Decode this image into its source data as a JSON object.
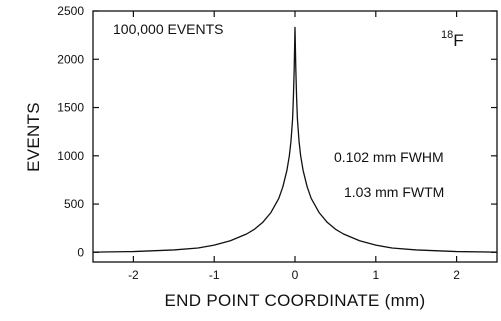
{
  "chart_data": {
    "type": "line",
    "xlabel": "END POINT COORDINATE (mm)",
    "ylabel": "EVENTS",
    "xlim": [
      -2.5,
      2.5
    ],
    "ylim": [
      -100,
      2500
    ],
    "x_ticks": [
      -2,
      -1,
      0,
      1,
      2
    ],
    "x_tick_labels": [
      "-2",
      "-1",
      "0",
      "1",
      "2"
    ],
    "y_ticks": [
      0,
      500,
      1000,
      1500,
      2000,
      2500
    ],
    "y_tick_labels": [
      "0",
      "500",
      "1000",
      "1500",
      "2000",
      "2500"
    ],
    "grid": false,
    "annotations": {
      "events": "100,000 EVENTS",
      "isotope_mass": "18",
      "isotope_symbol": "F",
      "fwhm": "0.102 mm FWHM",
      "fwtm": "1.03 mm FWTM"
    },
    "series": [
      {
        "x": [
          -2.5,
          -2.0,
          -1.5,
          -1.2,
          -1.0,
          -0.8,
          -0.6,
          -0.5,
          -0.4,
          -0.3,
          -0.2,
          -0.15,
          -0.1,
          -0.07,
          -0.05,
          -0.03,
          -0.02,
          -0.01,
          0.0,
          0.01,
          0.02,
          0.03,
          0.05,
          0.07,
          0.1,
          0.15,
          0.2,
          0.3,
          0.4,
          0.5,
          0.6,
          0.8,
          1.0,
          1.2,
          1.5,
          2.0,
          2.5
        ],
        "y": [
          2,
          8,
          25,
          45,
          75,
          120,
          190,
          240,
          310,
          410,
          560,
          680,
          850,
          1000,
          1150,
          1380,
          1600,
          1900,
          2330,
          1900,
          1600,
          1380,
          1150,
          1000,
          850,
          680,
          560,
          410,
          310,
          240,
          190,
          120,
          75,
          45,
          25,
          8,
          2
        ]
      }
    ]
  }
}
